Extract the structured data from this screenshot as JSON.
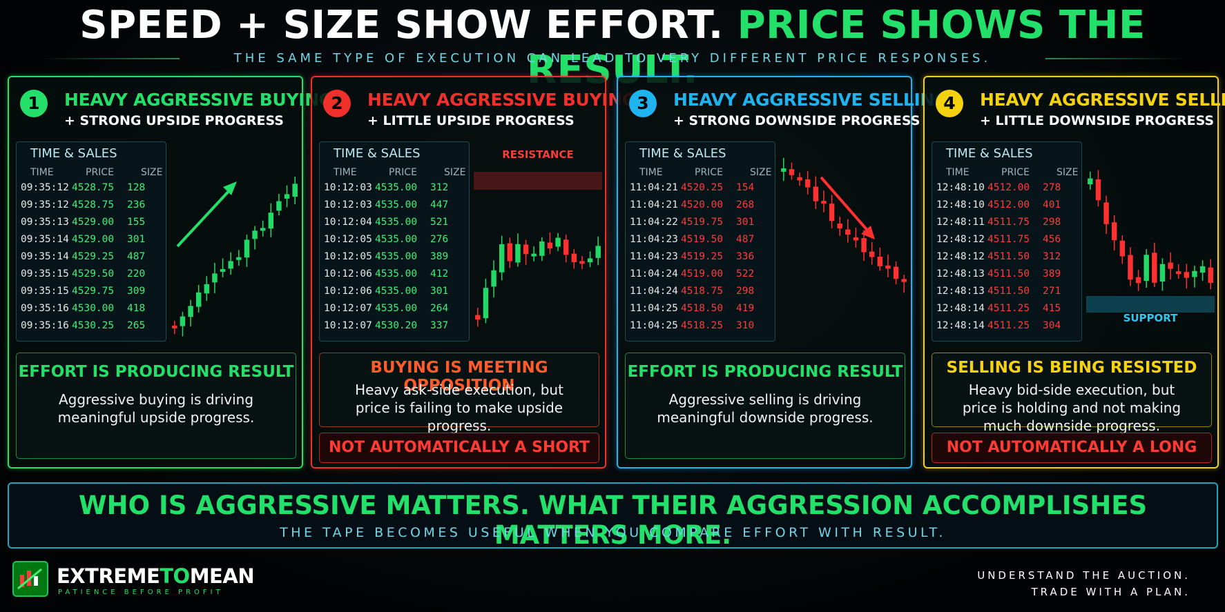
{
  "header": {
    "title_effort": "SPEED + SIZE SHOW EFFORT.",
    "title_result": "PRICE SHOWS THE RESULT.",
    "subtitle": "THE SAME TYPE OF EXECUTION CAN LEAD TO VERY DIFFERENT PRICE RESPONSES."
  },
  "panels": [
    {
      "number": "1",
      "title": "HEAVY AGGRESSIVE BUYING",
      "subtitle": "+ STRONG UPSIDE PROGRESS",
      "color": "#22e06a",
      "price_color": "#3df07a",
      "table_title": "TIME & SALES",
      "columns": [
        "TIME",
        "PRICE",
        "SIZE"
      ],
      "rows": [
        [
          "09:35:12",
          "4528.75",
          "128"
        ],
        [
          "09:35:12",
          "4528.75",
          "236"
        ],
        [
          "09:35:13",
          "4529.00",
          "155"
        ],
        [
          "09:35:14",
          "4529.00",
          "301"
        ],
        [
          "09:35:14",
          "4529.25",
          "487"
        ],
        [
          "09:35:15",
          "4529.50",
          "220"
        ],
        [
          "09:35:15",
          "4529.75",
          "309"
        ],
        [
          "09:35:16",
          "4530.00",
          "418"
        ],
        [
          "09:35:16",
          "4530.25",
          "265"
        ]
      ],
      "verdict_title": "EFFORT IS PRODUCING RESULT",
      "verdict_color": "#22e06a",
      "verdict_text": "Aggressive buying is driving meaningful upside progress."
    },
    {
      "number": "2",
      "title": "HEAVY AGGRESSIVE BUYING",
      "subtitle": "+ LITTLE UPSIDE PROGRESS",
      "color": "#f0302a",
      "price_color": "#3df07a",
      "table_title": "TIME & SALES",
      "columns": [
        "TIME",
        "PRICE",
        "SIZE"
      ],
      "rows": [
        [
          "10:12:03",
          "4535.00",
          "312"
        ],
        [
          "10:12:03",
          "4535.00",
          "447"
        ],
        [
          "10:12:04",
          "4535.00",
          "521"
        ],
        [
          "10:12:05",
          "4535.00",
          "276"
        ],
        [
          "10:12:05",
          "4535.00",
          "389"
        ],
        [
          "10:12:06",
          "4535.00",
          "412"
        ],
        [
          "10:12:06",
          "4535.00",
          "301"
        ],
        [
          "10:12:07",
          "4535.00",
          "264"
        ],
        [
          "10:12:07",
          "4530.20",
          "337"
        ]
      ],
      "chart_label": "RESISTANCE",
      "verdict_title": "BUYING IS MEETING OPPOSITION",
      "verdict_color": "#ff5a2a",
      "verdict_text": "Heavy ask-side execution, but price is failing to make upside progress.",
      "warning": "NOT AUTOMATICALLY A SHORT"
    },
    {
      "number": "3",
      "title": "HEAVY AGGRESSIVE SELLING",
      "subtitle": "+ STRONG DOWNSIDE PROGRESS",
      "color": "#1eb4f0",
      "price_color": "#ff3b3b",
      "table_title": "TIME & SALES",
      "columns": [
        "TIME",
        "PRICE",
        "SIZE"
      ],
      "rows": [
        [
          "11:04:21",
          "4520.25",
          "154"
        ],
        [
          "11:04:21",
          "4520.00",
          "268"
        ],
        [
          "11:04:22",
          "4519.75",
          "301"
        ],
        [
          "11:04:23",
          "4519.50",
          "487"
        ],
        [
          "11:04:23",
          "4519.25",
          "336"
        ],
        [
          "11:04:24",
          "4519.00",
          "522"
        ],
        [
          "11:04:24",
          "4518.75",
          "298"
        ],
        [
          "11:04:25",
          "4518.50",
          "419"
        ],
        [
          "11:04:25",
          "4518.25",
          "310"
        ]
      ],
      "verdict_title": "EFFORT IS PRODUCING RESULT",
      "verdict_color": "#22e06a",
      "verdict_text": "Aggressive selling is driving meaningful downside progress."
    },
    {
      "number": "4",
      "title": "HEAVY AGGRESSIVE SELLING",
      "subtitle": "+ LITTLE DOWNSIDE PROGRESS",
      "color": "#f5d20f",
      "price_color": "#ff3b3b",
      "table_title": "TIME & SALES",
      "columns": [
        "TIME",
        "PRICE",
        "SIZE"
      ],
      "rows": [
        [
          "12:48:10",
          "4512.00",
          "278"
        ],
        [
          "12:48:10",
          "4512.00",
          "401"
        ],
        [
          "12:48:11",
          "4511.75",
          "298"
        ],
        [
          "12:48:12",
          "4511.75",
          "456"
        ],
        [
          "12:48:12",
          "4511.50",
          "312"
        ],
        [
          "12:48:13",
          "4511.50",
          "389"
        ],
        [
          "12:48:13",
          "4511.50",
          "271"
        ],
        [
          "12:48:14",
          "4511.25",
          "415"
        ],
        [
          "12:48:14",
          "4511.25",
          "304"
        ]
      ],
      "chart_label": "SUPPORT",
      "verdict_title": "SELLING IS BEING RESISTED",
      "verdict_color": "#f5d20f",
      "verdict_text": "Heavy bid-side execution, but price is holding and not making much downside progress.",
      "warning": "NOT AUTOMATICALLY A LONG"
    }
  ],
  "banner": {
    "main": "WHO IS AGGRESSIVE MATTERS. WHAT THEIR AGGRESSION ACCOMPLISHES MATTERS MORE.",
    "sub": "THE TAPE BECOMES USEFUL WHEN YOU COMPARE EFFORT WITH RESULT."
  },
  "footer": {
    "brand_a": "EXTREME",
    "brand_b": "TO",
    "brand_c": "MEAN",
    "tagline": "PATIENCE BEFORE PROFIT",
    "motto_1": "UNDERSTAND THE AUCTION.",
    "motto_2": "TRADE WITH A PLAN."
  }
}
